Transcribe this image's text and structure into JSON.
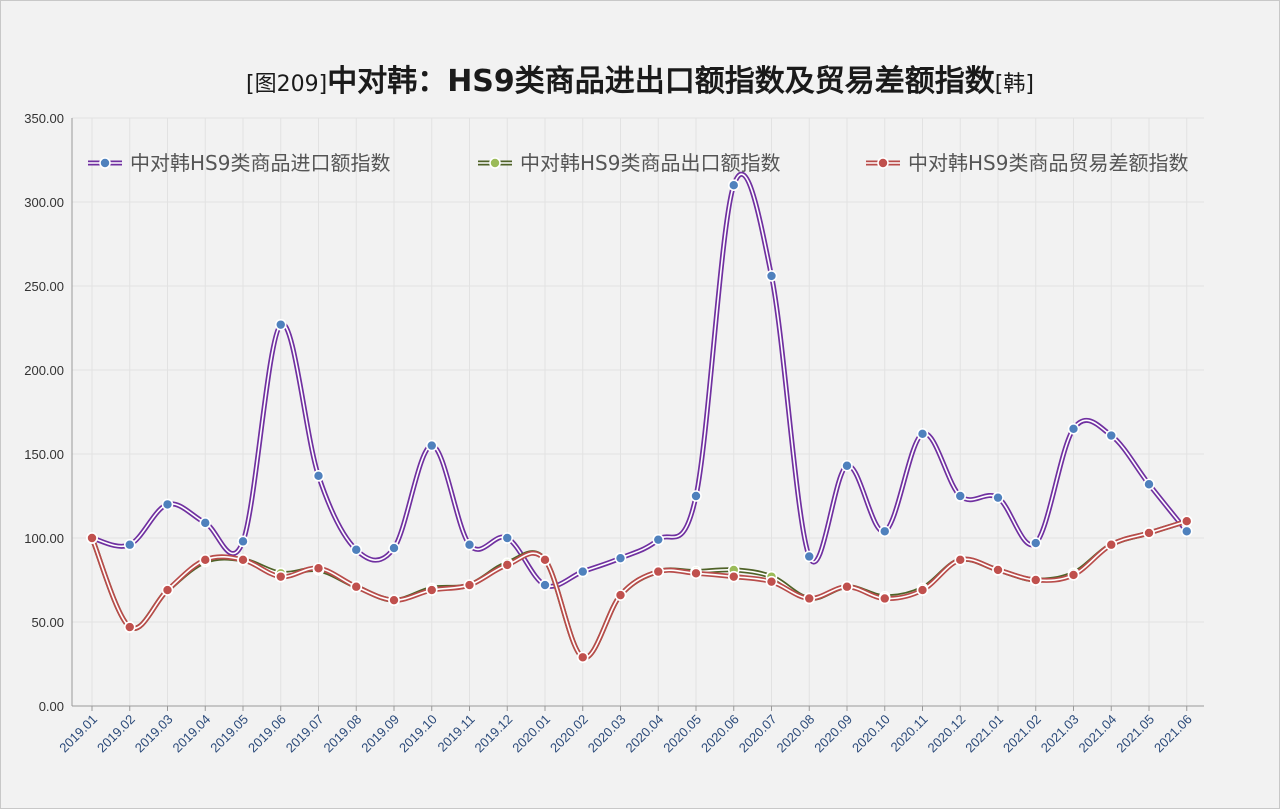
{
  "title": {
    "prefix": "[图209]",
    "main": "中对韩：HS9类商品进出口额指数及贸易差额指数",
    "suffix": "[韩]"
  },
  "colors": {
    "background": "#f2f2f2",
    "grid": "#e2e2e2",
    "import_line": "#7030a0",
    "export_line": "#4f6228",
    "balance_line": "#b84c4a",
    "import_marker": "#4f81bd",
    "export_marker": "#9bbb59",
    "balance_marker": "#c0504d"
  },
  "chart_data": {
    "type": "line",
    "title": "中对韩：HS9类商品进出口额指数及贸易差额指数",
    "xlabel": "",
    "ylabel": "",
    "ylim": [
      0,
      350
    ],
    "yticks": [
      "0.00",
      "50.00",
      "100.00",
      "150.00",
      "200.00",
      "250.00",
      "300.00",
      "350.00"
    ],
    "grid": true,
    "legend_position": "top",
    "categories": [
      "2019.01",
      "2019.02",
      "2019.03",
      "2019.04",
      "2019.05",
      "2019.06",
      "2019.07",
      "2019.08",
      "2019.09",
      "2019.10",
      "2019.11",
      "2019.12",
      "2020.01",
      "2020.02",
      "2020.03",
      "2020.04",
      "2020.05",
      "2020.06",
      "2020.07",
      "2020.08",
      "2020.09",
      "2020.10",
      "2020.11",
      "2020.12",
      "2021.01",
      "2021.02",
      "2021.03",
      "2021.04",
      "2021.05",
      "2021.06"
    ],
    "series": [
      {
        "name": "中对韩HS9类商品进口额指数",
        "values": [
          100,
          96,
          120,
          109,
          98,
          227,
          137,
          93,
          94,
          155,
          96,
          100,
          72,
          80,
          88,
          99,
          125,
          310,
          256,
          89,
          143,
          104,
          162,
          125,
          124,
          97,
          165,
          161,
          132,
          104
        ]
      },
      {
        "name": "中对韩HS9类商品出口额指数",
        "values": [
          100,
          47,
          69,
          86,
          87,
          79,
          81,
          71,
          63,
          70,
          72,
          85,
          87,
          29,
          66,
          80,
          80,
          81,
          77,
          64,
          71,
          65,
          70,
          87,
          81,
          75,
          79,
          96,
          103,
          110
        ]
      },
      {
        "name": "中对韩HS9类商品贸易差额指数",
        "values": [
          100,
          47,
          69,
          87,
          87,
          77,
          82,
          71,
          63,
          69,
          72,
          84,
          87,
          29,
          66,
          80,
          79,
          77,
          74,
          64,
          71,
          64,
          69,
          87,
          81,
          75,
          78,
          96,
          103,
          110
        ]
      }
    ]
  }
}
